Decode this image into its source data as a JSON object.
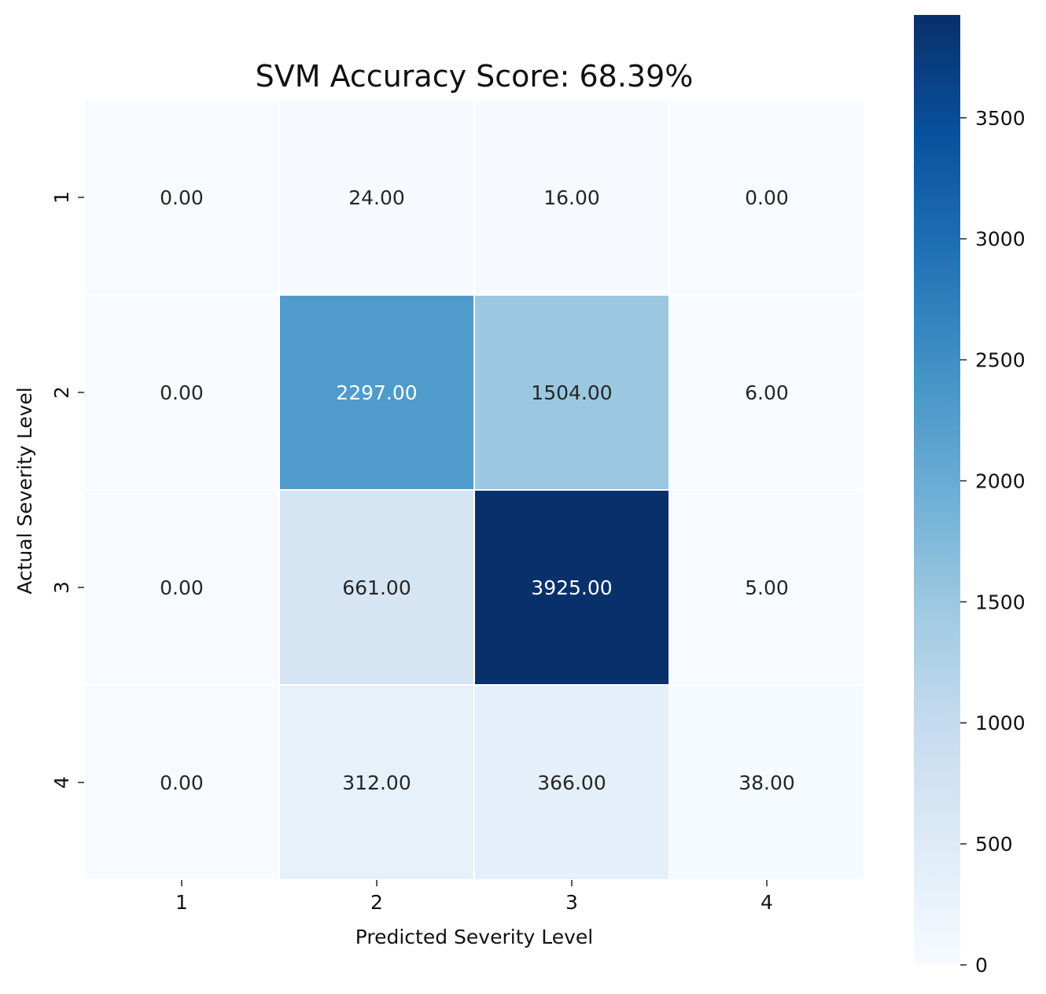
{
  "chart_data": {
    "type": "heatmap",
    "title": "SVM Accuracy Score: 68.39%",
    "xlabel": "Predicted Severity Level",
    "ylabel": "Actual Severity Level",
    "x_categories": [
      "1",
      "2",
      "3",
      "4"
    ],
    "y_categories": [
      "1",
      "2",
      "3",
      "4"
    ],
    "values": [
      [
        0,
        24,
        16,
        0
      ],
      [
        0,
        2297,
        1504,
        6
      ],
      [
        0,
        661,
        3925,
        5
      ],
      [
        0,
        312,
        366,
        38
      ]
    ],
    "annotation_format": "0.00",
    "colormap": "Blues",
    "colormap_stops": [
      "#f7fbff",
      "#deebf7",
      "#c6dbef",
      "#9ecae1",
      "#6baed6",
      "#4292c6",
      "#2171b5",
      "#08519c",
      "#08306b"
    ],
    "vmin": 0,
    "vmax": 3925,
    "colorbar_ticks": [
      0,
      500,
      1000,
      1500,
      2000,
      2500,
      3000,
      3500
    ],
    "grid_line_color": "#ffffff"
  }
}
